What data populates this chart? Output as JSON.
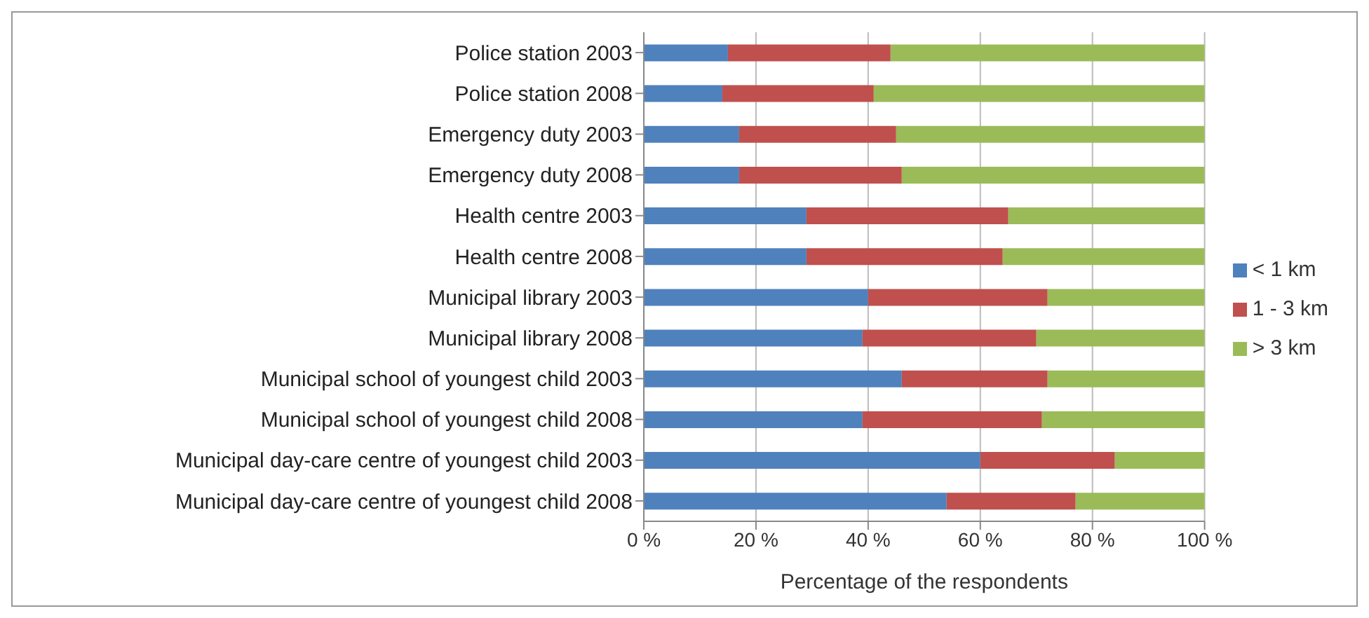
{
  "chart_data": {
    "type": "bar",
    "orientation": "horizontal",
    "stacked": true,
    "xlabel": "Percentage of the respondents",
    "categories": [
      "Police station 2003",
      "Police station 2008",
      "Emergency duty 2003",
      "Emergency duty 2008",
      "Health centre 2003",
      "Health centre 2008",
      "Municipal library 2003",
      "Municipal library 2008",
      "Municipal school of youngest child 2003",
      "Municipal school of youngest child 2008",
      "Municipal day-care centre of youngest child 2003",
      "Municipal day-care centre of youngest child 2008"
    ],
    "series": [
      {
        "name": "< 1 km",
        "color": "#4f81bd",
        "values": [
          15,
          14,
          17,
          17,
          29,
          29,
          40,
          39,
          46,
          39,
          60,
          54
        ]
      },
      {
        "name": "1 - 3 km",
        "color": "#c0504d",
        "values": [
          29,
          27,
          28,
          29,
          36,
          35,
          32,
          31,
          26,
          32,
          24,
          23
        ]
      },
      {
        "name": "> 3 km",
        "color": "#9bbb59",
        "values": [
          56,
          59,
          55,
          54,
          35,
          36,
          28,
          30,
          28,
          29,
          16,
          23
        ]
      }
    ],
    "xlim": [
      0,
      100
    ],
    "xticks": [
      {
        "value": 0,
        "label": "0 %"
      },
      {
        "value": 20,
        "label": "20 %"
      },
      {
        "value": 40,
        "label": "40 %"
      },
      {
        "value": 60,
        "label": "60 %"
      },
      {
        "value": 80,
        "label": "80 %"
      },
      {
        "value": 100,
        "label": "100 %"
      }
    ],
    "grid": "x",
    "legend": "right"
  }
}
